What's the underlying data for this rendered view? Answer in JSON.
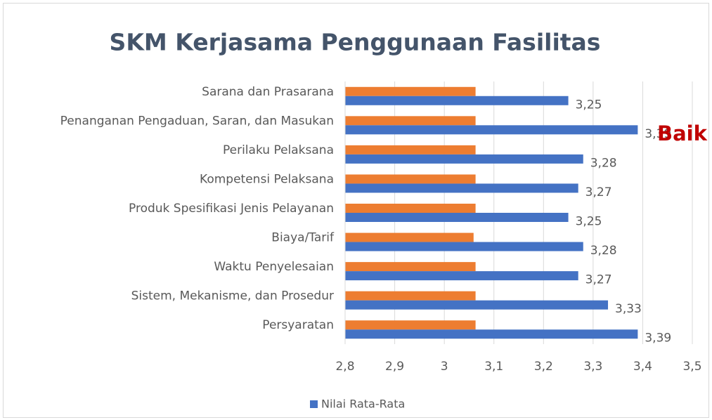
{
  "chart_data": {
    "type": "bar",
    "orientation": "horizontal",
    "title": "SKM Kerjasama Penggunaan Fasilitas",
    "annotation": {
      "text": "Baik",
      "color": "#c00000"
    },
    "categories": [
      "Sarana dan Prasarana",
      "Penanganan Pengaduan, Saran, dan Masukan",
      "Perilaku Pelaksana",
      "Kompetensi Pelaksana",
      "Produk Spesifikasi Jenis Pelayanan",
      "Biaya/Tarif",
      "Waktu Penyelesaian",
      "Sistem, Mekanisme, dan Prosedur",
      "Persyaratan"
    ],
    "series": [
      {
        "name": "Nilai Rata-Rata",
        "color": "#4472c4",
        "values": [
          3.25,
          3.39,
          3.28,
          3.27,
          3.25,
          3.28,
          3.27,
          3.33,
          3.39
        ],
        "value_labels": [
          "3,25",
          "3,39",
          "3,28",
          "3,27",
          "3,25",
          "3,28",
          "3,27",
          "3,33",
          "3,39"
        ]
      },
      {
        "color": "#ed7d31",
        "values": [
          3.063,
          3.063,
          3.063,
          3.063,
          3.063,
          3.059,
          3.063,
          3.063,
          3.063
        ]
      }
    ],
    "xlim": [
      2.8,
      3.5
    ],
    "xticks": [
      {
        "value": 2.8,
        "label": "2,8"
      },
      {
        "value": 2.9,
        "label": "2,9"
      },
      3,
      {
        "value": 3.1,
        "label": "3,1"
      },
      {
        "value": 3.2,
        "label": "3,2"
      },
      {
        "value": 3.3,
        "label": "3,3"
      },
      {
        "value": 3.4,
        "label": "3,4"
      },
      {
        "value": 3.5,
        "label": "3,5"
      }
    ],
    "grid": true,
    "legend": "bottom"
  }
}
